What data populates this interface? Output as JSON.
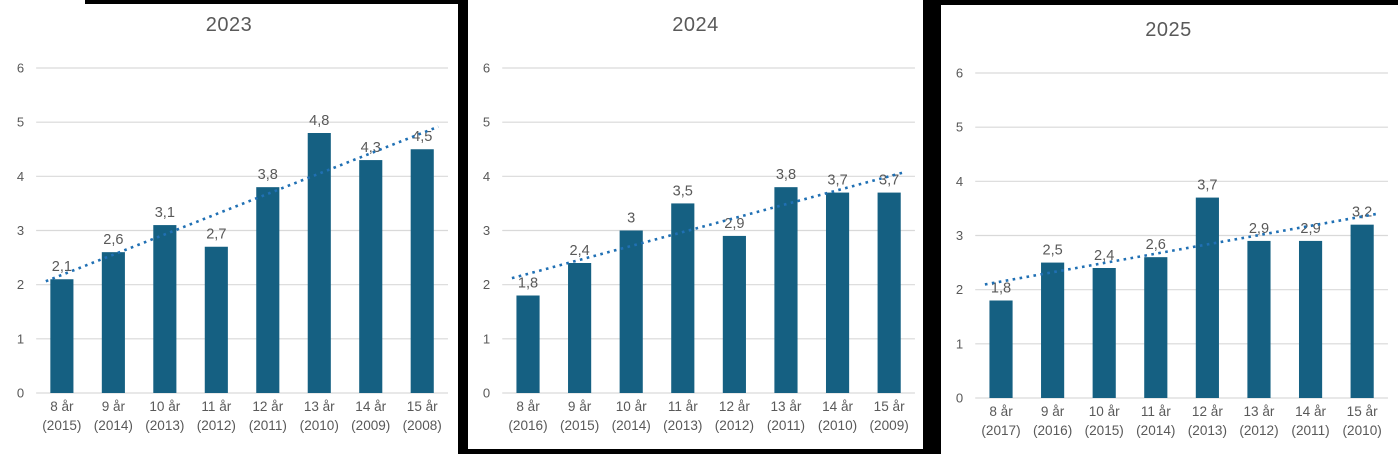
{
  "page": {
    "description": "Three bar charts side by side with dotted linear trendlines",
    "background": "#FFFFFF",
    "frame_color": "#000000"
  },
  "style": {
    "bar_color": "#156082",
    "trend_color": "#2070B4",
    "grid_color": "#D9D9D9",
    "text_color": "#595959",
    "title_color": "#595959"
  },
  "chart_data": [
    {
      "type": "bar",
      "title": "2023",
      "categories": [
        "8 år",
        "9 år",
        "10 år",
        "11 år",
        "12 år",
        "13 år",
        "14 år",
        "15 år"
      ],
      "category_sublabels": [
        "(2015)",
        "(2014)",
        "(2013)",
        "(2012)",
        "(2011)",
        "(2010)",
        "(2009)",
        "(2008)"
      ],
      "values": [
        2.1,
        2.6,
        3.1,
        2.7,
        3.8,
        4.8,
        4.3,
        4.5
      ],
      "value_labels": [
        "2,1",
        "2,6",
        "3,1",
        "2,7",
        "3,8",
        "4,8",
        "4,3",
        "4,5"
      ],
      "ylim": [
        0,
        6
      ],
      "yticks": [
        0,
        1,
        2,
        3,
        4,
        5,
        6
      ],
      "grid": true,
      "legend": false,
      "trendline": {
        "style": "dotted",
        "y_at_first_category": 2.18,
        "y_at_last_category": 4.8
      }
    },
    {
      "type": "bar",
      "title": "2024",
      "categories": [
        "8 år",
        "9 år",
        "10 år",
        "11 år",
        "12 år",
        "13 år",
        "14 år",
        "15 år"
      ],
      "category_sublabels": [
        "(2016)",
        "(2015)",
        "(2014)",
        "(2013)",
        "(2012)",
        "(2011)",
        "(2010)",
        "(2009)"
      ],
      "values": [
        1.8,
        2.4,
        3,
        3.5,
        2.9,
        3.8,
        3.7,
        3.7
      ],
      "value_labels": [
        "1,8",
        "2,4",
        "3",
        "3,5",
        "2,9",
        "3,8",
        "3,7",
        "3,7"
      ],
      "ylim": [
        0,
        6
      ],
      "yticks": [
        0,
        1,
        2,
        3,
        4,
        5,
        6
      ],
      "grid": true,
      "legend": false,
      "trendline": {
        "style": "dotted",
        "y_at_first_category": 2.2,
        "y_at_last_category": 4.0
      }
    },
    {
      "type": "bar",
      "title": "2025",
      "categories": [
        "8 år",
        "9 år",
        "10 år",
        "11 år",
        "12 år",
        "13 år",
        "14 år",
        "15 år"
      ],
      "category_sublabels": [
        "(2017)",
        "(2016)",
        "(2015)",
        "(2014)",
        "(2013)",
        "(2012)",
        "(2011)",
        "(2010)"
      ],
      "values": [
        1.8,
        2.5,
        2.4,
        2.6,
        3.7,
        2.9,
        2.9,
        3.2
      ],
      "value_labels": [
        "1,8",
        "2,5",
        "2,4",
        "2,6",
        "3,7",
        "2,9",
        "2,9",
        "3,2"
      ],
      "ylim": [
        0,
        6
      ],
      "yticks": [
        0,
        1,
        2,
        3,
        4,
        5,
        6
      ],
      "grid": true,
      "legend": false,
      "trendline": {
        "style": "dotted",
        "y_at_first_category": 2.15,
        "y_at_last_category": 3.35
      }
    }
  ]
}
